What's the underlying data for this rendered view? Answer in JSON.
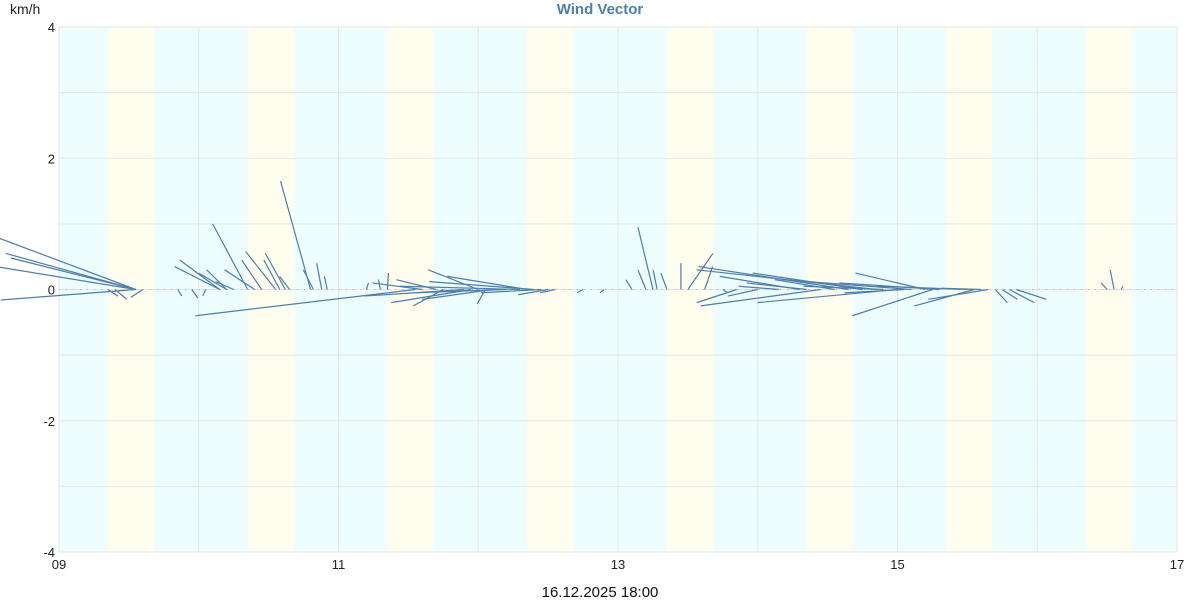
{
  "chart": {
    "title": "Wind Vector",
    "unit_label": "km/h",
    "footer": "16.12.2025 18:00"
  },
  "colors": {
    "night_band": "#eefdfe",
    "day_band": "#fffdee",
    "grid": "#e6e6e6",
    "vector": "#4a7fb0",
    "title": "#4a7fb0"
  },
  "chart_data": {
    "type": "scatter",
    "subtype": "wind-vector (quiver) plot",
    "title": "Wind Vector",
    "xlabel": "16.12.2025 18:00",
    "ylabel": "km/h",
    "ylim": [
      -4,
      4
    ],
    "yticks": [
      -4,
      -2,
      0,
      2,
      4
    ],
    "x_ticks": [
      "09",
      "11",
      "13",
      "15",
      "17"
    ],
    "x_tick_days": [
      9,
      11,
      13,
      15,
      17
    ],
    "xlim_days": [
      9,
      17
    ],
    "grid": true,
    "legend": null,
    "day_bands_fraction_of_day": [
      0.35,
      0.68
    ],
    "vectors": [
      {
        "t": 9.55,
        "dx": -140,
        "dy": 0.8
      },
      {
        "t": 9.55,
        "dx": -130,
        "dy": 0.55
      },
      {
        "t": 9.55,
        "dx": -125,
        "dy": 0.48
      },
      {
        "t": 9.55,
        "dx": -140,
        "dy": 0.35
      },
      {
        "t": 9.55,
        "dx": -135,
        "dy": -0.16
      },
      {
        "t": 9.35,
        "dx": 10,
        "dy": -0.1
      },
      {
        "t": 9.4,
        "dx": 12,
        "dy": -0.15
      },
      {
        "t": 9.6,
        "dx": -12,
        "dy": -0.12
      },
      {
        "t": 9.85,
        "dx": 4,
        "dy": -0.1
      },
      {
        "t": 9.95,
        "dx": 6,
        "dy": -0.13
      },
      {
        "t": 10.05,
        "dx": -3,
        "dy": -0.1
      },
      {
        "t": 10.15,
        "dx": -40,
        "dy": 0.45
      },
      {
        "t": 10.15,
        "dx": -45,
        "dy": 0.35
      },
      {
        "t": 10.2,
        "dx": -28,
        "dy": 0.25
      },
      {
        "t": 10.2,
        "dx": -20,
        "dy": 0.3
      },
      {
        "t": 10.25,
        "dx": -18,
        "dy": 0.12
      },
      {
        "t": 10.35,
        "dx": -35,
        "dy": 1.0
      },
      {
        "t": 10.4,
        "dx": -30,
        "dy": 0.3
      },
      {
        "t": 10.45,
        "dx": -20,
        "dy": 0.45
      },
      {
        "t": 10.55,
        "dx": -30,
        "dy": 0.58
      },
      {
        "t": 10.58,
        "dx": -16,
        "dy": 0.45
      },
      {
        "t": 10.62,
        "dx": -20,
        "dy": 0.55
      },
      {
        "t": 10.65,
        "dx": -10,
        "dy": 0.2
      },
      {
        "t": 10.8,
        "dx": -30,
        "dy": 1.65
      },
      {
        "t": 10.82,
        "dx": -10,
        "dy": 0.3
      },
      {
        "t": 10.88,
        "dx": -5,
        "dy": 0.4
      },
      {
        "t": 10.92,
        "dx": -3,
        "dy": 0.2
      },
      {
        "t": 11.2,
        "dx": 2,
        "dy": 0.1
      },
      {
        "t": 11.3,
        "dx": -2,
        "dy": 0.15
      },
      {
        "t": 11.35,
        "dx": 1,
        "dy": 0.25
      },
      {
        "t": 11.55,
        "dx": -220,
        "dy": -0.4
      },
      {
        "t": 11.6,
        "dx": -50,
        "dy": 0.1
      },
      {
        "t": 11.7,
        "dx": -40,
        "dy": 0.15
      },
      {
        "t": 11.75,
        "dx": -30,
        "dy": -0.25
      },
      {
        "t": 11.9,
        "dx": -100,
        "dy": -0.1
      },
      {
        "t": 11.95,
        "dx": -80,
        "dy": -0.2
      },
      {
        "t": 12.0,
        "dx": -50,
        "dy": 0.3
      },
      {
        "t": 12.05,
        "dx": -8,
        "dy": -0.22
      },
      {
        "t": 12.1,
        "dx": -70,
        "dy": -0.15
      },
      {
        "t": 12.2,
        "dx": -90,
        "dy": -0.05
      },
      {
        "t": 12.3,
        "dx": -120,
        "dy": 0.05
      },
      {
        "t": 12.35,
        "dx": -80,
        "dy": 0.2
      },
      {
        "t": 12.4,
        "dx": -105,
        "dy": 0.12
      },
      {
        "t": 12.45,
        "dx": -60,
        "dy": -0.05
      },
      {
        "t": 12.5,
        "dx": -30,
        "dy": -0.08
      },
      {
        "t": 12.55,
        "dx": -15,
        "dy": -0.05
      },
      {
        "t": 12.75,
        "dx": -6,
        "dy": -0.05
      },
      {
        "t": 12.9,
        "dx": -4,
        "dy": -0.05
      },
      {
        "t": 13.1,
        "dx": -6,
        "dy": 0.15
      },
      {
        "t": 13.2,
        "dx": -8,
        "dy": 0.3
      },
      {
        "t": 13.25,
        "dx": -15,
        "dy": 0.95
      },
      {
        "t": 13.28,
        "dx": -4,
        "dy": 0.3
      },
      {
        "t": 13.35,
        "dx": -6,
        "dy": 0.25
      },
      {
        "t": 13.45,
        "dx": 0,
        "dy": 0.4
      },
      {
        "t": 13.5,
        "dx": 25,
        "dy": 0.55
      },
      {
        "t": 13.62,
        "dx": 8,
        "dy": 0.35
      },
      {
        "t": 13.75,
        "dx": 5,
        "dy": -0.05
      },
      {
        "t": 13.85,
        "dx": -40,
        "dy": -0.2
      },
      {
        "t": 14.0,
        "dx": -30,
        "dy": -0.1
      },
      {
        "t": 14.15,
        "dx": -40,
        "dy": 0.05
      },
      {
        "t": 14.3,
        "dx": -80,
        "dy": 0.2
      },
      {
        "t": 14.35,
        "dx": -60,
        "dy": 0.1
      },
      {
        "t": 14.45,
        "dx": -120,
        "dy": -0.25
      },
      {
        "t": 14.55,
        "dx": -60,
        "dy": 0.15
      },
      {
        "t": 14.65,
        "dx": -150,
        "dy": 0.35
      },
      {
        "t": 14.75,
        "dx": -110,
        "dy": 0.25
      },
      {
        "t": 14.85,
        "dx": -180,
        "dy": 0.3
      },
      {
        "t": 14.9,
        "dx": -80,
        "dy": 0.05
      },
      {
        "t": 15.0,
        "dx": -140,
        "dy": -0.2
      },
      {
        "t": 15.05,
        "dx": -60,
        "dy": -0.05
      },
      {
        "t": 15.1,
        "dx": -130,
        "dy": 0.15
      },
      {
        "t": 15.2,
        "dx": -70,
        "dy": 0.25
      },
      {
        "t": 15.25,
        "dx": -80,
        "dy": -0.4
      },
      {
        "t": 15.3,
        "dx": -100,
        "dy": 0.1
      },
      {
        "t": 15.5,
        "dx": -90,
        "dy": 0.05
      },
      {
        "t": 15.55,
        "dx": -60,
        "dy": -0.25
      },
      {
        "t": 15.6,
        "dx": -40,
        "dy": 0.02
      },
      {
        "t": 15.65,
        "dx": -60,
        "dy": -0.15
      },
      {
        "t": 15.7,
        "dx": 12,
        "dy": -0.2
      },
      {
        "t": 15.75,
        "dx": 15,
        "dy": -0.15
      },
      {
        "t": 15.8,
        "dx": 25,
        "dy": -0.2
      },
      {
        "t": 15.85,
        "dx": 30,
        "dy": -0.15
      },
      {
        "t": 16.5,
        "dx": -6,
        "dy": 0.1
      },
      {
        "t": 16.55,
        "dx": -4,
        "dy": 0.3
      },
      {
        "t": 16.6,
        "dx": 2,
        "dy": 0.05
      }
    ]
  }
}
